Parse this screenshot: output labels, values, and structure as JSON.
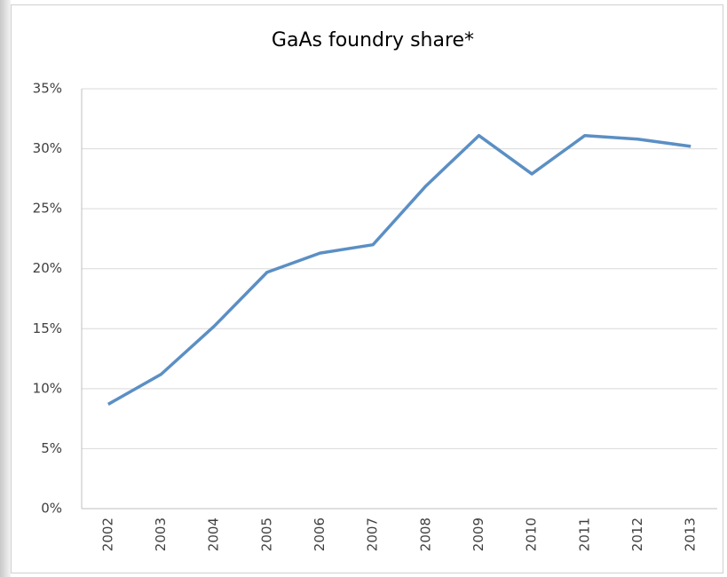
{
  "chart_data": {
    "type": "line",
    "title": "GaAs foundry share*",
    "categories": [
      "2002",
      "2003",
      "2004",
      "2005",
      "2006",
      "2007",
      "2008",
      "2009",
      "2010",
      "2011",
      "2012",
      "2013"
    ],
    "series": [
      {
        "name": "GaAs foundry share",
        "color": "#5b8fc4",
        "values": [
          8.7,
          11.2,
          15.2,
          19.7,
          21.3,
          22.0,
          26.9,
          31.1,
          27.9,
          31.1,
          30.8,
          30.2
        ]
      }
    ],
    "ylim": [
      0,
      35
    ],
    "yticks": [
      {
        "value": 0,
        "label": "0%"
      },
      {
        "value": 5,
        "label": "5%"
      },
      {
        "value": 10,
        "label": "10%"
      },
      {
        "value": 15,
        "label": "15%"
      },
      {
        "value": 20,
        "label": "20%"
      },
      {
        "value": 25,
        "label": "25%"
      },
      {
        "value": 30,
        "label": "30%"
      },
      {
        "value": 35,
        "label": "35%"
      }
    ],
    "grid": true
  }
}
